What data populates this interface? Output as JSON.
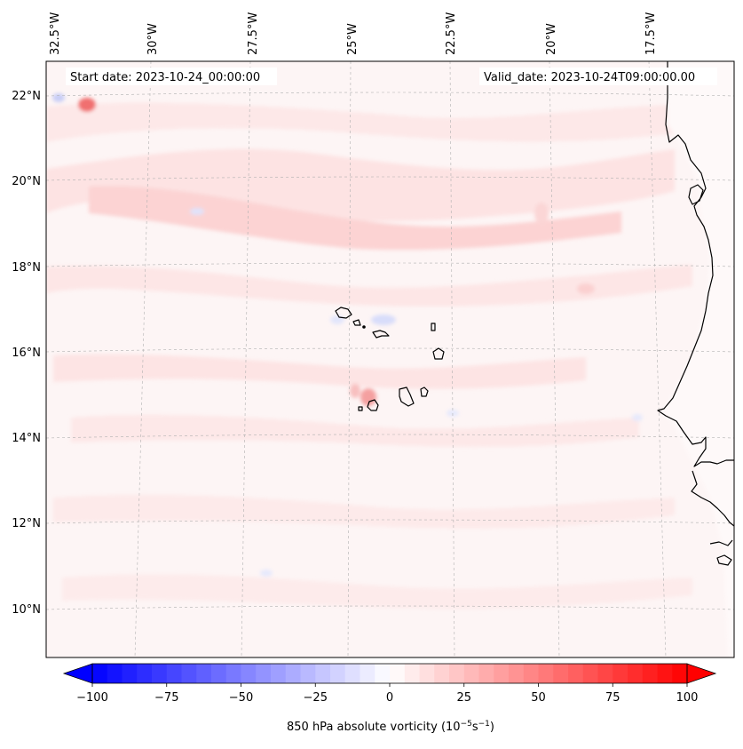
{
  "map": {
    "start_date_label": "Start date: 2023-10-24_00:00:00",
    "valid_date_label": "Valid_date: 2023-10-24T09:00:00.00",
    "lon_labels": [
      "32.5°W",
      "30°W",
      "27.5°W",
      "25°W",
      "22.5°W",
      "20°W",
      "17.5°W"
    ],
    "lat_labels": [
      "22°N",
      "20°N",
      "18°N",
      "16°N",
      "14°N",
      "12°N",
      "10°N"
    ],
    "colors": {
      "background_field": "#fdf5f5",
      "coastline": "#000000",
      "gridline": "#b0b0b0",
      "band_light_red": "#fde0e0",
      "band_mid_red": "#fcc8c8",
      "patch_blue": "#dfe3fb"
    }
  },
  "colorbar": {
    "label_text": "850 hPa absolute vorticity (10",
    "label_exp1": "−5",
    "label_mid": "s",
    "label_exp2": "−1",
    "label_close": ")",
    "min": -100,
    "max": 100,
    "step": 5,
    "tick_values": [
      -100,
      -75,
      -50,
      -25,
      0,
      25,
      50,
      75,
      100
    ],
    "tick_labels": [
      "−100",
      "−75",
      "−50",
      "−25",
      "0",
      "25",
      "50",
      "75",
      "100"
    ],
    "colormap": "bwr"
  }
}
